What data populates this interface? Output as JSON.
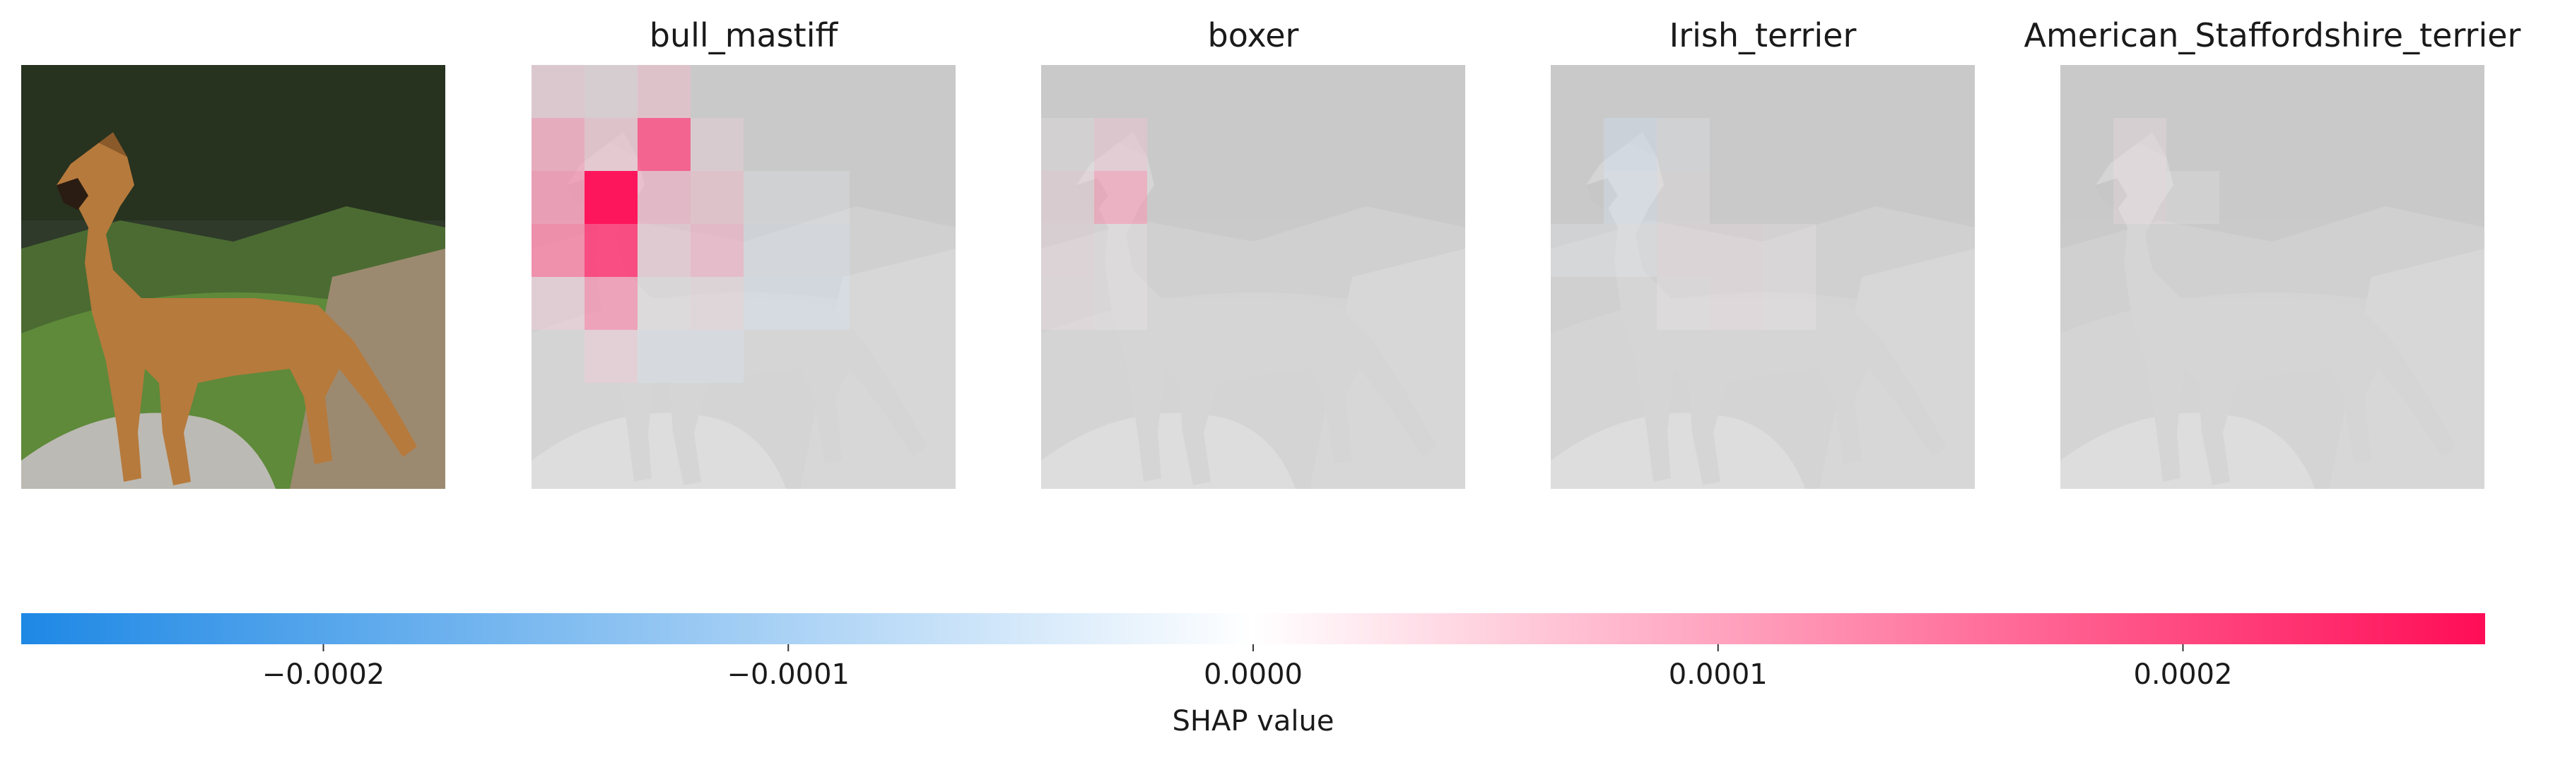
{
  "chart_data": {
    "type": "heatmap",
    "colorbar": {
      "label": "SHAP value",
      "vmin": -0.000265,
      "vmax": 0.000265,
      "ticks": [
        -0.0002,
        -0.0001,
        0.0,
        0.0001,
        0.0002
      ],
      "tick_labels": [
        "−0.0002",
        "−0.0001",
        "0.0000",
        "0.0001",
        "0.0002"
      ],
      "low_color": "#1e88e5",
      "mid_color": "#ffffff",
      "high_color": "#ff0d57"
    },
    "original_image": {
      "subject": "boxer-like dog standing on rock beside bushes",
      "colors": {
        "fur": "#b67a3c",
        "background": "#2f3a2a",
        "grass": "#5e8a3a",
        "rock": "#bcbab4"
      }
    },
    "grid_size": 8,
    "panels": [
      {
        "title": "bull_mastiff",
        "cells": [
          {
            "row": 0,
            "col": 0,
            "value": 6e-05
          },
          {
            "row": 0,
            "col": 1,
            "value": 4e-05
          },
          {
            "row": 0,
            "col": 2,
            "value": 8e-05
          },
          {
            "row": 1,
            "col": 0,
            "value": 0.00012
          },
          {
            "row": 1,
            "col": 1,
            "value": 8e-05
          },
          {
            "row": 1,
            "col": 2,
            "value": 0.0002
          },
          {
            "row": 1,
            "col": 3,
            "value": 5e-05
          },
          {
            "row": 2,
            "col": 0,
            "value": 0.00014
          },
          {
            "row": 2,
            "col": 1,
            "value": 0.00026
          },
          {
            "row": 2,
            "col": 2,
            "value": 0.0001
          },
          {
            "row": 2,
            "col": 3,
            "value": 8e-05
          },
          {
            "row": 2,
            "col": 4,
            "value": -2e-05
          },
          {
            "row": 2,
            "col": 5,
            "value": -2e-05
          },
          {
            "row": 3,
            "col": 0,
            "value": 0.00016
          },
          {
            "row": 3,
            "col": 1,
            "value": 0.00022
          },
          {
            "row": 3,
            "col": 2,
            "value": 7e-05
          },
          {
            "row": 3,
            "col": 3,
            "value": 0.0001
          },
          {
            "row": 3,
            "col": 4,
            "value": -4e-05
          },
          {
            "row": 3,
            "col": 5,
            "value": -4e-05
          },
          {
            "row": 4,
            "col": 0,
            "value": 6e-05
          },
          {
            "row": 4,
            "col": 1,
            "value": 0.00014
          },
          {
            "row": 4,
            "col": 2,
            "value": 2e-05
          },
          {
            "row": 4,
            "col": 3,
            "value": 4e-05
          },
          {
            "row": 4,
            "col": 4,
            "value": -5e-05
          },
          {
            "row": 4,
            "col": 5,
            "value": -5e-05
          },
          {
            "row": 5,
            "col": 1,
            "value": 6e-05
          },
          {
            "row": 5,
            "col": 2,
            "value": -4e-05
          },
          {
            "row": 5,
            "col": 3,
            "value": -4e-05
          }
        ]
      },
      {
        "title": "boxer",
        "cells": [
          {
            "row": 1,
            "col": 0,
            "value": 2e-05
          },
          {
            "row": 1,
            "col": 1,
            "value": 7e-05
          },
          {
            "row": 2,
            "col": 0,
            "value": 5e-05
          },
          {
            "row": 2,
            "col": 1,
            "value": 0.00012
          },
          {
            "row": 3,
            "col": 0,
            "value": 4e-05
          },
          {
            "row": 3,
            "col": 1,
            "value": 2e-05
          },
          {
            "row": 4,
            "col": 0,
            "value": 3e-05
          },
          {
            "row": 4,
            "col": 1,
            "value": 2e-05
          }
        ]
      },
      {
        "title": "Irish_terrier",
        "cells": [
          {
            "row": 1,
            "col": 1,
            "value": -6e-05
          },
          {
            "row": 1,
            "col": 2,
            "value": -2e-05
          },
          {
            "row": 2,
            "col": 1,
            "value": -5e-05
          },
          {
            "row": 2,
            "col": 2,
            "value": 2e-05
          },
          {
            "row": 3,
            "col": 0,
            "value": -3e-05
          },
          {
            "row": 3,
            "col": 1,
            "value": -2e-05
          },
          {
            "row": 3,
            "col": 2,
            "value": 3e-05
          },
          {
            "row": 3,
            "col": 3,
            "value": 3e-05
          },
          {
            "row": 3,
            "col": 4,
            "value": 2e-05
          },
          {
            "row": 4,
            "col": 2,
            "value": 2e-05
          },
          {
            "row": 4,
            "col": 3,
            "value": 3e-05
          },
          {
            "row": 4,
            "col": 4,
            "value": 2e-05
          }
        ]
      },
      {
        "title": "American_Staffordshire_terrier",
        "cells": [
          {
            "row": 1,
            "col": 1,
            "value": 3e-05
          },
          {
            "row": 2,
            "col": 1,
            "value": 3e-05
          },
          {
            "row": 2,
            "col": 2,
            "value": 1e-05
          }
        ]
      }
    ]
  }
}
